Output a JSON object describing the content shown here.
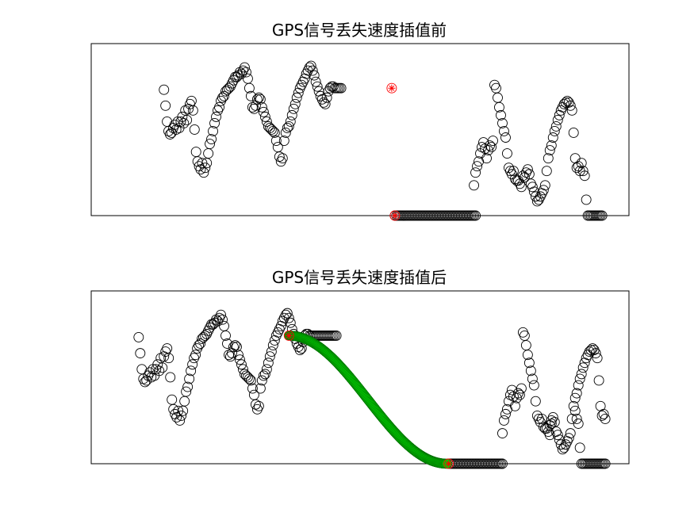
{
  "chart_data": [
    {
      "type": "scatter",
      "title": "GPS信号丢失速度插值前",
      "xlabel": "",
      "ylabel": "",
      "xlim": [
        0,
        340
      ],
      "ylim": [
        0,
        1
      ],
      "grid": false,
      "series": [
        {
          "marker": "circle",
          "color": "#000000",
          "segments": [
            {
              "x0": 46,
              "x1": 75,
              "y": [
                0.79,
                0.69,
                0.59,
                0.53,
                0.51,
                0.52,
                0.55,
                0.57,
                0.54,
                0.59,
                0.55,
                0.59,
                0.62,
                0.58,
                0.66,
                0.6,
                0.67,
                0.7,
                0.72,
                0.66,
                0.54,
                0.4,
                0.34,
                0.31,
                0.29,
                0.33,
                0.27,
                0.3,
                0.33,
                0.39,
                0.45
              ]
            },
            {
              "x0": 76,
              "x1": 116,
              "y": [
                0.48,
                0.53,
                0.58,
                0.62,
                0.66,
                0.68,
                0.72,
                0.74,
                0.75,
                0.78,
                0.79,
                0.8,
                0.81,
                0.83,
                0.85,
                0.87,
                0.87,
                0.88,
                0.9,
                0.89,
                0.91,
                0.93,
                0.9,
                0.86,
                0.8,
                0.75,
                0.68,
                0.67,
                0.69,
                0.73,
                0.74,
                0.73,
                0.68,
                0.65,
                0.62,
                0.59,
                0.56,
                0.55,
                0.54,
                0.53,
                0.52
              ]
            },
            {
              "x0": 117,
              "x1": 158,
              "y": [
                0.47,
                0.43,
                0.37,
                0.34,
                0.36,
                0.47,
                0.52,
                0.55,
                0.56,
                0.59,
                0.63,
                0.67,
                0.7,
                0.74,
                0.77,
                0.8,
                0.82,
                0.84,
                0.86,
                0.89,
                0.91,
                0.93,
                0.94,
                0.91,
                0.88,
                0.84,
                0.81,
                0.78,
                0.75,
                0.73,
                0.71,
                0.7,
                0.74,
                0.78,
                0.8,
                0.81,
                0.81,
                0.8,
                0.8,
                0.8,
                0.8,
                0.8
              ]
            },
            {
              "x0": 192,
              "x1": 243,
              "y": [
                0.0,
                0.0,
                0.0,
                0.0,
                0.0,
                0.0,
                0.0,
                0.0,
                0.0,
                0.0,
                0.0,
                0.0,
                0.0,
                0.0,
                0.0,
                0.0,
                0.0,
                0.0,
                0.0,
                0.0,
                0.0,
                0.0,
                0.0,
                0.0,
                0.0,
                0.0,
                0.0,
                0.0,
                0.0,
                0.0,
                0.0,
                0.0,
                0.0,
                0.0,
                0.0,
                0.0,
                0.0,
                0.0,
                0.0,
                0.0,
                0.0,
                0.0,
                0.0,
                0.0,
                0.0,
                0.0,
                0.0,
                0.0,
                0.0,
                0.0,
                0.0,
                0.0
              ]
            },
            {
              "x0": 242,
              "x1": 282,
              "y": [
                0.19,
                0.27,
                0.31,
                0.34,
                0.39,
                0.43,
                0.46,
                0.42,
                0.36,
                0.41,
                0.44,
                0.43,
                0.47,
                0.82,
                0.8,
                0.74,
                0.68,
                0.63,
                0.58,
                0.53,
                0.49,
                0.39,
                0.3,
                0.28,
                0.26,
                0.28,
                0.23,
                0.22,
                0.22,
                0.2,
                0.18,
                0.25,
                0.24,
                0.27,
                0.29,
                0.26,
                0.2,
                0.18,
                0.15,
                0.12,
                0.09
              ]
            },
            {
              "x0": 283,
              "x1": 323,
              "y": [
                0.1,
                0.12,
                0.14,
                0.16,
                0.19,
                0.28,
                0.36,
                0.41,
                0.44,
                0.49,
                0.53,
                0.56,
                0.6,
                0.63,
                0.66,
                0.68,
                0.7,
                0.71,
                0.72,
                0.71,
                0.69,
                0.66,
                0.52,
                0.36,
                0.3,
                0.31,
                0.28,
                0.33,
                0.28,
                0.25,
                0.1,
                0.0,
                0.0,
                0.0,
                0.0,
                0.0,
                0.0,
                0.0,
                0.0,
                0.0,
                0.0
              ]
            }
          ]
        },
        {
          "marker": "asterisk",
          "color": "#ff0000",
          "points": [
            [
              190,
              0.8
            ],
            [
              192,
              0.0
            ]
          ]
        }
      ]
    },
    {
      "type": "scatter",
      "title": "GPS信号丢失速度插值后",
      "xlabel": "",
      "ylabel": "",
      "xlim": [
        0,
        340
      ],
      "ylim": [
        0,
        1
      ],
      "grid": false,
      "series": [
        {
          "marker": "circle",
          "color": "#000000",
          "segments": [
            {
              "x0": 30,
              "x1": 58,
              "y": [
                0.79,
                0.69,
                0.59,
                0.53,
                0.51,
                0.52,
                0.55,
                0.57,
                0.54,
                0.59,
                0.55,
                0.59,
                0.62,
                0.58,
                0.66,
                0.6,
                0.67,
                0.7,
                0.72,
                0.66,
                0.54,
                0.4,
                0.34,
                0.31,
                0.29,
                0.33,
                0.27,
                0.3,
                0.33
              ]
            },
            {
              "x0": 59,
              "x1": 92,
              "y": [
                0.39,
                0.45,
                0.48,
                0.53,
                0.58,
                0.62,
                0.66,
                0.68,
                0.72,
                0.74,
                0.75,
                0.78,
                0.79,
                0.8,
                0.81,
                0.83,
                0.85,
                0.87,
                0.87,
                0.88,
                0.9,
                0.89,
                0.91,
                0.93,
                0.9,
                0.86,
                0.8,
                0.75,
                0.68,
                0.67,
                0.69,
                0.73,
                0.74,
                0.73
              ]
            },
            {
              "x0": 93,
              "x1": 128,
              "y": [
                0.68,
                0.65,
                0.62,
                0.59,
                0.56,
                0.55,
                0.54,
                0.53,
                0.52,
                0.47,
                0.43,
                0.37,
                0.34,
                0.36,
                0.47,
                0.52,
                0.55,
                0.56,
                0.59,
                0.63,
                0.67,
                0.7,
                0.74,
                0.77,
                0.8,
                0.82,
                0.84,
                0.86,
                0.89,
                0.91,
                0.93,
                0.94,
                0.91,
                0.88,
                0.84,
                0.81
              ]
            },
            {
              "x0": 129,
              "x1": 155,
              "y": [
                0.78,
                0.75,
                0.73,
                0.71,
                0.72,
                0.76,
                0.8,
                0.81,
                0.81,
                0.8,
                0.8,
                0.8,
                0.8,
                0.8,
                0.8,
                0.8,
                0.8,
                0.8,
                0.8,
                0.8,
                0.8,
                0.8,
                0.8,
                0.8,
                0.8,
                0.8,
                0.8
              ]
            },
            {
              "x0": 226,
              "x1": 260,
              "y": [
                0.0,
                0.0,
                0.0,
                0.0,
                0.0,
                0.0,
                0.0,
                0.0,
                0.0,
                0.0,
                0.0,
                0.0,
                0.0,
                0.0,
                0.0,
                0.0,
                0.0,
                0.0,
                0.0,
                0.0,
                0.0,
                0.0,
                0.0,
                0.0,
                0.0,
                0.0,
                0.0,
                0.0,
                0.0,
                0.0,
                0.0,
                0.0,
                0.0,
                0.0,
                0.0
              ]
            },
            {
              "x0": 260,
              "x1": 291,
              "y": [
                0.19,
                0.27,
                0.31,
                0.34,
                0.39,
                0.43,
                0.46,
                0.42,
                0.36,
                0.41,
                0.44,
                0.43,
                0.47,
                0.82,
                0.8,
                0.74,
                0.68,
                0.63,
                0.58,
                0.53,
                0.49,
                0.39,
                0.3,
                0.28,
                0.26,
                0.28,
                0.23,
                0.22,
                0.22,
                0.2,
                0.18,
                0.25
              ]
            },
            {
              "x0": 290,
              "x1": 325,
              "y": [
                0.24,
                0.27,
                0.29,
                0.26,
                0.2,
                0.18,
                0.15,
                0.12,
                0.09,
                0.1,
                0.12,
                0.14,
                0.16,
                0.19,
                0.28,
                0.36,
                0.41,
                0.44,
                0.49,
                0.53,
                0.56,
                0.6,
                0.63,
                0.66,
                0.68,
                0.7,
                0.71,
                0.72,
                0.71,
                0.69,
                0.66,
                0.52,
                0.36,
                0.3,
                0.31,
                0.28
              ]
            },
            {
              "x0": 306,
              "x1": 325,
              "y": [
                0.33,
                0.28,
                0.25,
                0.1,
                0.0,
                0.0,
                0.0,
                0.0,
                0.0,
                0.0,
                0.0,
                0.0,
                0.0,
                0.0,
                0.0,
                0.0,
                0.0,
                0.0,
                0.0,
                0.0
              ]
            }
          ]
        },
        {
          "marker": "asterisk",
          "color": "#00cc00",
          "interpolated": {
            "x_start": 125,
            "x_end": 225,
            "y_start": 0.8,
            "y_end": 0.0,
            "count": 220
          }
        },
        {
          "marker": "asterisk",
          "color": "#ff0000",
          "points": [
            [
              125,
              0.8
            ],
            [
              226,
              0.0
            ]
          ]
        }
      ]
    }
  ]
}
